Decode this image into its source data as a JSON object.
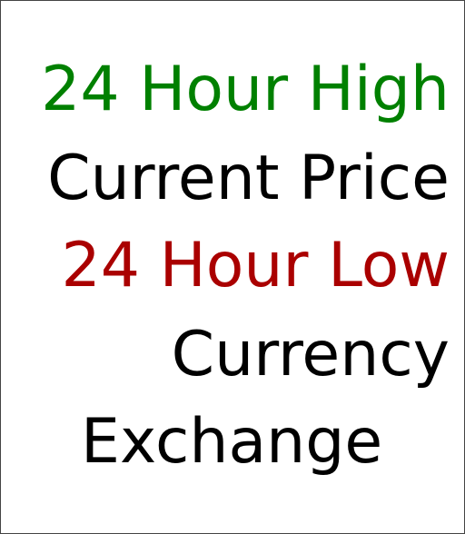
{
  "widget": {
    "high_label": "24 Hour High",
    "current_label": "Current Price",
    "low_label": "24 Hour Low",
    "footer_line1": "Currency",
    "footer_line2": "Exchange"
  },
  "colors": {
    "high": "#008000",
    "current": "#000000",
    "low": "#aa0000",
    "footer": "#000000",
    "border": "#444444",
    "background": "#ffffff"
  }
}
